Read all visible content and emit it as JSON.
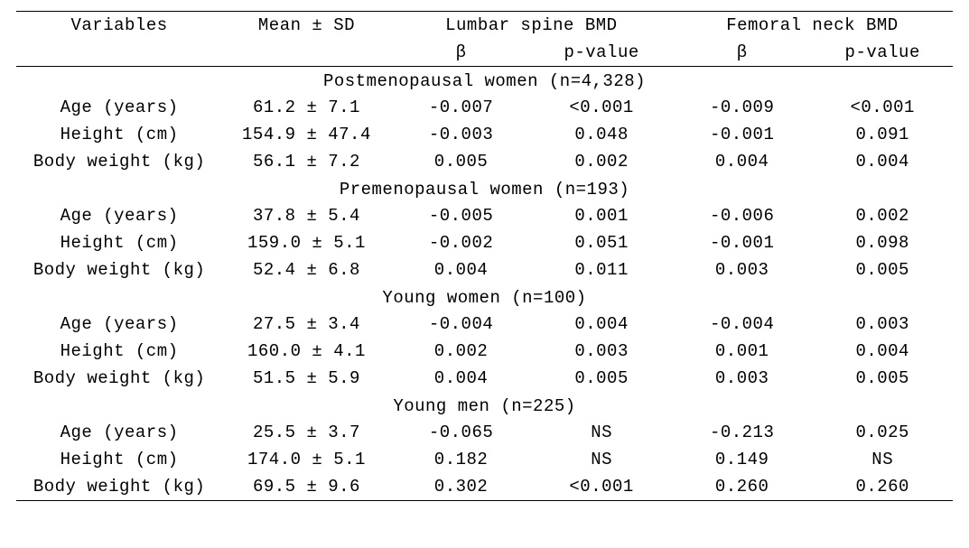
{
  "type": "table",
  "font_family": "Courier New",
  "font_size_pt": 14,
  "text_color": "#000000",
  "background_color": "#ffffff",
  "border_color": "#000000",
  "columns": [
    {
      "key": "var",
      "label": "Variables",
      "align": "center"
    },
    {
      "key": "mean",
      "label": "Mean ± SD",
      "align": "center"
    },
    {
      "key": "lb",
      "group": "Lumbar spine BMD",
      "label": "β",
      "align": "center"
    },
    {
      "key": "lp",
      "group": "Lumbar spine BMD",
      "label": "p-value",
      "align": "center"
    },
    {
      "key": "fb",
      "group": "Femoral neck BMD",
      "label": "β",
      "align": "center"
    },
    {
      "key": "fp",
      "group": "Femoral neck BMD",
      "label": "p-value",
      "align": "center"
    }
  ],
  "header": {
    "variables": "Variables",
    "mean_sd": "Mean ± SD",
    "lumbar_group": "Lumbar spine BMD",
    "femoral_group": "Femoral neck BMD",
    "beta": "β",
    "pvalue": "p-value"
  },
  "groups": [
    {
      "title": "Postmenopausal women (n=4,328)",
      "rows": [
        {
          "var": "Age (years)",
          "mean": "61.2 ± 7.1",
          "lb": "-0.007",
          "lp": "<0.001",
          "fb": "-0.009",
          "fp": "<0.001"
        },
        {
          "var": "Height (cm)",
          "mean": "154.9 ± 47.4",
          "lb": "-0.003",
          "lp": "0.048",
          "fb": "-0.001",
          "fp": "0.091"
        },
        {
          "var": "Body weight (kg)",
          "mean": "56.1 ± 7.2",
          "lb": "0.005",
          "lp": "0.002",
          "fb": "0.004",
          "fp": "0.004"
        }
      ]
    },
    {
      "title": "Premenopausal women (n=193)",
      "rows": [
        {
          "var": "Age (years)",
          "mean": "37.8 ± 5.4",
          "lb": "-0.005",
          "lp": "0.001",
          "fb": "-0.006",
          "fp": "0.002"
        },
        {
          "var": "Height (cm)",
          "mean": "159.0 ± 5.1",
          "lb": "-0.002",
          "lp": "0.051",
          "fb": "-0.001",
          "fp": "0.098"
        },
        {
          "var": "Body weight (kg)",
          "mean": "52.4 ± 6.8",
          "lb": "0.004",
          "lp": "0.011",
          "fb": "0.003",
          "fp": "0.005"
        }
      ]
    },
    {
      "title": "Young women (n=100)",
      "rows": [
        {
          "var": "Age (years)",
          "mean": "27.5 ± 3.4",
          "lb": "-0.004",
          "lp": "0.004",
          "fb": "-0.004",
          "fp": "0.003"
        },
        {
          "var": "Height (cm)",
          "mean": "160.0 ± 4.1",
          "lb": "0.002",
          "lp": "0.003",
          "fb": "0.001",
          "fp": "0.004"
        },
        {
          "var": "Body weight (kg)",
          "mean": "51.5 ± 5.9",
          "lb": "0.004",
          "lp": "0.005",
          "fb": "0.003",
          "fp": "0.005"
        }
      ]
    },
    {
      "title": "Young men (n=225)",
      "rows": [
        {
          "var": "Age (years)",
          "mean": "25.5 ± 3.7",
          "lb": "-0.065",
          "lp": "NS",
          "fb": "-0.213",
          "fp": "0.025"
        },
        {
          "var": "Height (cm)",
          "mean": "174.0 ± 5.1",
          "lb": "0.182",
          "lp": "NS",
          "fb": "0.149",
          "fp": "NS"
        },
        {
          "var": "Body weight (kg)",
          "mean": "69.5 ± 9.6",
          "lb": "0.302",
          "lp": "<0.001",
          "fb": "0.260",
          "fp": "0.260"
        }
      ]
    }
  ]
}
